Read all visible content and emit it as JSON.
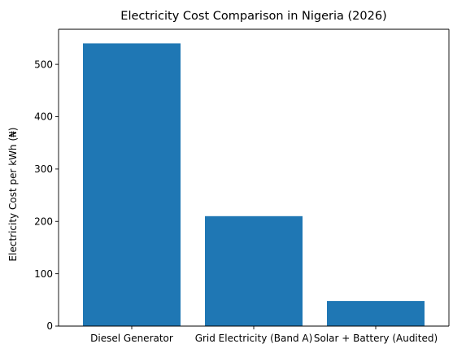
{
  "chart_data": {
    "type": "bar",
    "title": "Electricity Cost Comparison in Nigeria (2026)",
    "xlabel": "",
    "ylabel": "Electricity Cost per kWh (₦)",
    "categories": [
      "Diesel Generator",
      "Grid Electricity (Band A)",
      "Solar + Battery (Audited)"
    ],
    "values": [
      540,
      210,
      48
    ],
    "ylim": [
      0,
      567
    ],
    "yticks": [
      0,
      100,
      200,
      300,
      400,
      500
    ],
    "grid": false,
    "bar_color": "#1f77b4"
  }
}
